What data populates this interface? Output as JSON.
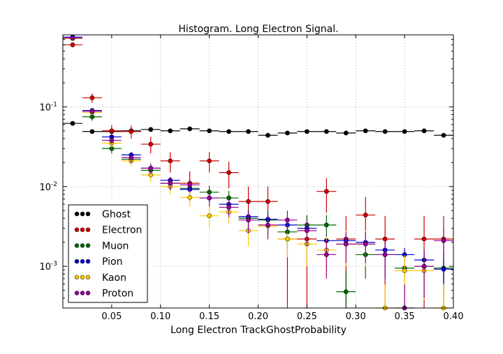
{
  "chart_data": {
    "type": "scatter",
    "title": "Histogram. Long Electron Signal.",
    "xlabel": "Long Electron TrackGhostProbability",
    "ylabel": "",
    "xlim": [
      0.0,
      0.4
    ],
    "ylim": [
      0.0003,
      0.8
    ],
    "yscale": "log",
    "grid": true,
    "legend_position": "lower-left",
    "x_ticks": [
      "0.05",
      "0.10",
      "0.15",
      "0.20",
      "0.25",
      "0.30",
      "0.35",
      "0.40"
    ],
    "x_tick_values": [
      0.05,
      0.1,
      0.15,
      0.2,
      0.25,
      0.3,
      0.35,
      0.4
    ],
    "y_ticks": [
      {
        "value": 0.001,
        "base": "10",
        "exp": "-3"
      },
      {
        "value": 0.01,
        "base": "10",
        "exp": "-2"
      },
      {
        "value": 0.1,
        "base": "10",
        "exp": "-1"
      }
    ],
    "bin_width": 0.02,
    "x": [
      0.01,
      0.03,
      0.05,
      0.07,
      0.09,
      0.11,
      0.13,
      0.15,
      0.17,
      0.19,
      0.21,
      0.23,
      0.25,
      0.27,
      0.29,
      0.31,
      0.33,
      0.35,
      0.37,
      0.39
    ],
    "series": [
      {
        "name": "Ghost",
        "color": "#000000",
        "edge": "#000000",
        "values": [
          0.062,
          0.049,
          0.049,
          0.05,
          0.052,
          0.05,
          0.053,
          0.05,
          0.049,
          0.049,
          0.044,
          0.047,
          0.049,
          0.049,
          0.047,
          0.05,
          0.049,
          0.049,
          0.05,
          0.044
        ],
        "err": [
          0.003,
          0.0025,
          0.0025,
          0.0025,
          0.0025,
          0.0025,
          0.0025,
          0.0025,
          0.0025,
          0.0025,
          0.0025,
          0.0025,
          0.0025,
          0.0025,
          0.0025,
          0.0025,
          0.0025,
          0.0025,
          0.0025,
          0.0025
        ]
      },
      {
        "name": "Electron",
        "color": "#cc0000",
        "edge": "#660000",
        "values": [
          0.6,
          0.13,
          0.05,
          0.049,
          0.034,
          0.021,
          0.011,
          0.021,
          0.015,
          0.0065,
          0.0065,
          0.0022,
          0.0022,
          0.0087,
          0.0022,
          0.0044,
          0.0022,
          0.0,
          0.0022,
          0.0022
        ],
        "err": [
          0.04,
          0.017,
          0.009,
          0.009,
          0.008,
          0.006,
          0.0045,
          0.006,
          0.0055,
          0.0035,
          0.0035,
          0.0021,
          0.0021,
          0.004,
          0.0021,
          0.003,
          0.0021,
          0,
          0.0021,
          0.0021
        ]
      },
      {
        "name": "Muon",
        "color": "#006600",
        "edge": "#003300",
        "values": [
          0.72,
          0.075,
          0.03,
          0.022,
          0.016,
          0.011,
          0.0095,
          0.0085,
          0.0072,
          0.004,
          0.0038,
          0.0027,
          0.0033,
          0.0033,
          0.00048,
          0.0014,
          0.0014,
          0.00095,
          0.001,
          0.00095
        ],
        "err": [
          0.035,
          0.008,
          0.004,
          0.003,
          0.0025,
          0.002,
          0.0018,
          0.0017,
          0.0016,
          0.0012,
          0.0012,
          0.001,
          0.0011,
          0.0011,
          0.0004,
          0.0007,
          0.0007,
          0.0006,
          0.0006,
          0.0006
        ]
      },
      {
        "name": "Pion",
        "color": "#0000cc",
        "edge": "#000066",
        "values": [
          0.75,
          0.09,
          0.042,
          0.025,
          0.017,
          0.012,
          0.0092,
          0.0072,
          0.006,
          0.0042,
          0.0039,
          0.0033,
          0.003,
          0.0021,
          0.0021,
          0.002,
          0.0016,
          0.0014,
          0.0012,
          0.00092
        ],
        "err": [
          0.02,
          0.004,
          0.0025,
          0.002,
          0.0015,
          0.0012,
          0.001,
          0.0009,
          0.0008,
          0.0007,
          0.0006,
          0.0005,
          0.0005,
          0.0004,
          0.0004,
          0.0004,
          0.0004,
          0.0003,
          0.0003,
          0.0003
        ]
      },
      {
        "name": "Kaon",
        "color": "#ffcc00",
        "edge": "#665500",
        "values": [
          0.72,
          0.085,
          0.035,
          0.021,
          0.014,
          0.01,
          0.0073,
          0.0043,
          0.0048,
          0.0028,
          0.0032,
          0.0022,
          0.0019,
          0.0016,
          0.0019,
          0.0019,
          0.00029,
          0.00088,
          0.00088,
          0.00029
        ],
        "err": [
          0.03,
          0.007,
          0.004,
          0.003,
          0.0025,
          0.002,
          0.0017,
          0.0013,
          0.0014,
          0.001,
          0.0011,
          0.0009,
          0.0009,
          0.0008,
          0.0009,
          0.0009,
          0.0003,
          0.0005,
          0.0005,
          0.0003
        ]
      },
      {
        "name": "Proton",
        "color": "#990099",
        "edge": "#440044",
        "values": [
          0.73,
          0.088,
          0.038,
          0.023,
          0.017,
          0.011,
          0.0105,
          0.0072,
          0.0055,
          0.0038,
          0.0033,
          0.0038,
          0.0028,
          0.0014,
          0.0019,
          0.0019,
          0.0014,
          0.00029,
          0.001,
          0.0021
        ],
        "err": [
          0.03,
          0.007,
          0.004,
          0.003,
          0.0025,
          0.002,
          0.002,
          0.0016,
          0.0014,
          0.0012,
          0.0011,
          0.0012,
          0.001,
          0.0007,
          0.0008,
          0.0008,
          0.0007,
          0.0003,
          0.0006,
          0.0009
        ]
      }
    ]
  }
}
